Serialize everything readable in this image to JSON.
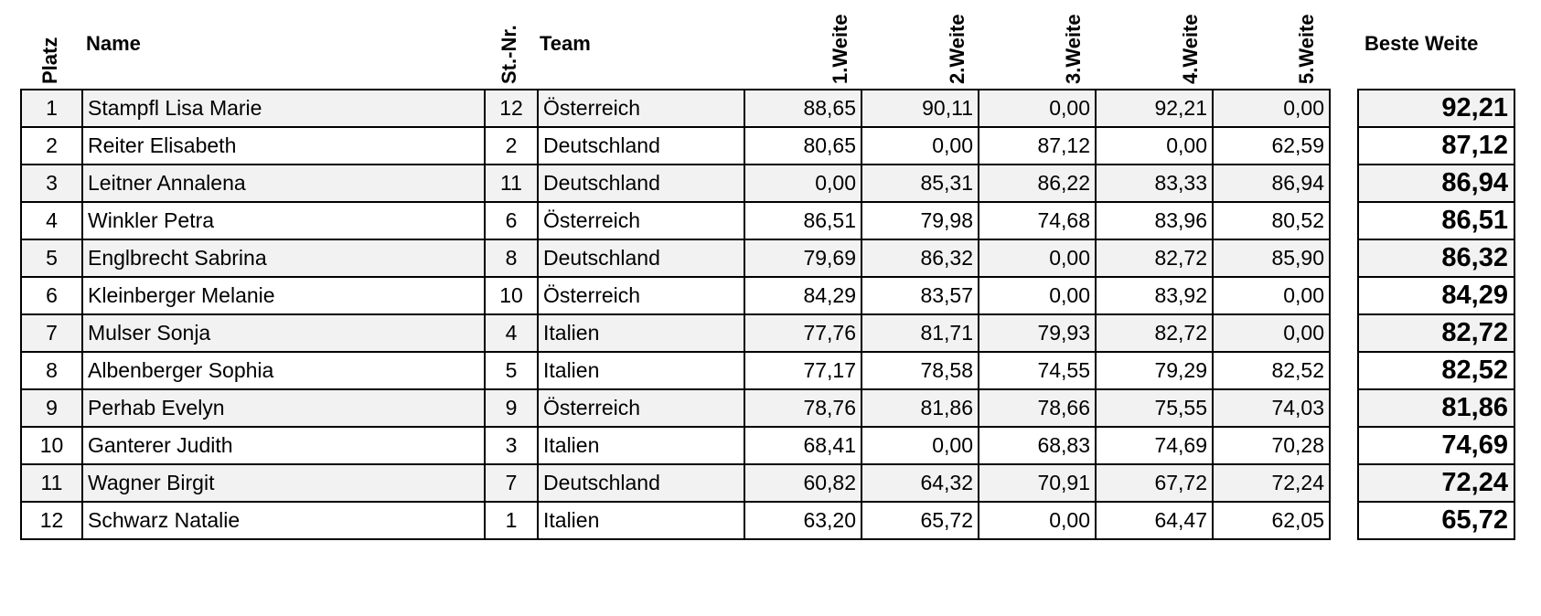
{
  "headers": {
    "platz": "Platz",
    "name": "Name",
    "stnr": "St.-Nr.",
    "team": "Team",
    "w1": "1.Weite",
    "w2": "2.Weite",
    "w3": "3.Weite",
    "w4": "4.Weite",
    "w5": "5.Weite",
    "best": "Beste Weite"
  },
  "rows": [
    {
      "platz": "1",
      "name": "Stampfl Lisa Marie",
      "stnr": "12",
      "team": "Österreich",
      "w1": "88,65",
      "w2": "90,11",
      "w3": "0,00",
      "w4": "92,21",
      "w5": "0,00",
      "best": "92,21"
    },
    {
      "platz": "2",
      "name": "Reiter Elisabeth",
      "stnr": "2",
      "team": "Deutschland",
      "w1": "80,65",
      "w2": "0,00",
      "w3": "87,12",
      "w4": "0,00",
      "w5": "62,59",
      "best": "87,12"
    },
    {
      "platz": "3",
      "name": "Leitner Annalena",
      "stnr": "11",
      "team": "Deutschland",
      "w1": "0,00",
      "w2": "85,31",
      "w3": "86,22",
      "w4": "83,33",
      "w5": "86,94",
      "best": "86,94"
    },
    {
      "platz": "4",
      "name": "Winkler Petra",
      "stnr": "6",
      "team": "Österreich",
      "w1": "86,51",
      "w2": "79,98",
      "w3": "74,68",
      "w4": "83,96",
      "w5": "80,52",
      "best": "86,51"
    },
    {
      "platz": "5",
      "name": "Englbrecht Sabrina",
      "stnr": "8",
      "team": "Deutschland",
      "w1": "79,69",
      "w2": "86,32",
      "w3": "0,00",
      "w4": "82,72",
      "w5": "85,90",
      "best": "86,32"
    },
    {
      "platz": "6",
      "name": "Kleinberger Melanie",
      "stnr": "10",
      "team": "Österreich",
      "w1": "84,29",
      "w2": "83,57",
      "w3": "0,00",
      "w4": "83,92",
      "w5": "0,00",
      "best": "84,29"
    },
    {
      "platz": "7",
      "name": "Mulser Sonja",
      "stnr": "4",
      "team": "Italien",
      "w1": "77,76",
      "w2": "81,71",
      "w3": "79,93",
      "w4": "82,72",
      "w5": "0,00",
      "best": "82,72"
    },
    {
      "platz": "8",
      "name": "Albenberger Sophia",
      "stnr": "5",
      "team": "Italien",
      "w1": "77,17",
      "w2": "78,58",
      "w3": "74,55",
      "w4": "79,29",
      "w5": "82,52",
      "best": "82,52"
    },
    {
      "platz": "9",
      "name": "Perhab Evelyn",
      "stnr": "9",
      "team": "Österreich",
      "w1": "78,76",
      "w2": "81,86",
      "w3": "78,66",
      "w4": "75,55",
      "w5": "74,03",
      "best": "81,86"
    },
    {
      "platz": "10",
      "name": "Ganterer Judith",
      "stnr": "3",
      "team": "Italien",
      "w1": "68,41",
      "w2": "0,00",
      "w3": "68,83",
      "w4": "74,69",
      "w5": "70,28",
      "best": "74,69"
    },
    {
      "platz": "11",
      "name": "Wagner Birgit",
      "stnr": "7",
      "team": "Deutschland",
      "w1": "60,82",
      "w2": "64,32",
      "w3": "70,91",
      "w4": "67,72",
      "w5": "72,24",
      "best": "72,24"
    },
    {
      "platz": "12",
      "name": "Schwarz Natalie",
      "stnr": "1",
      "team": "Italien",
      "w1": "63,20",
      "w2": "65,72",
      "w3": "0,00",
      "w4": "64,47",
      "w5": "62,05",
      "best": "65,72"
    }
  ]
}
